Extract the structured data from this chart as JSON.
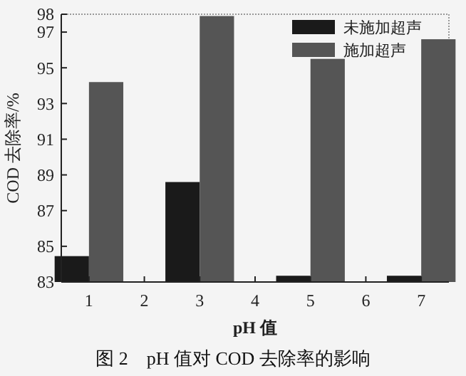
{
  "chart_data": {
    "type": "bar",
    "xlabel": "pH 值",
    "ylabel": "COD 去除率/%",
    "categories": [
      "1",
      "2",
      "3",
      "4",
      "5",
      "6",
      "7"
    ],
    "series": [
      {
        "name": "未施加超声",
        "color": "#1a1a1a",
        "values": [
          84.45,
          null,
          88.6,
          null,
          83.35,
          null,
          83.35
        ]
      },
      {
        "name": "施加超声",
        "color": "#555555",
        "values": [
          94.2,
          null,
          97.9,
          null,
          95.5,
          null,
          96.6
        ]
      }
    ],
    "ylim": [
      83,
      98
    ],
    "yticks": [
      83,
      85,
      87,
      89,
      91,
      93,
      95,
      97,
      98
    ],
    "legend": "top right",
    "grid": false,
    "annotations": [
      "图 2　pH 值对 COD 去除率的影响"
    ]
  }
}
